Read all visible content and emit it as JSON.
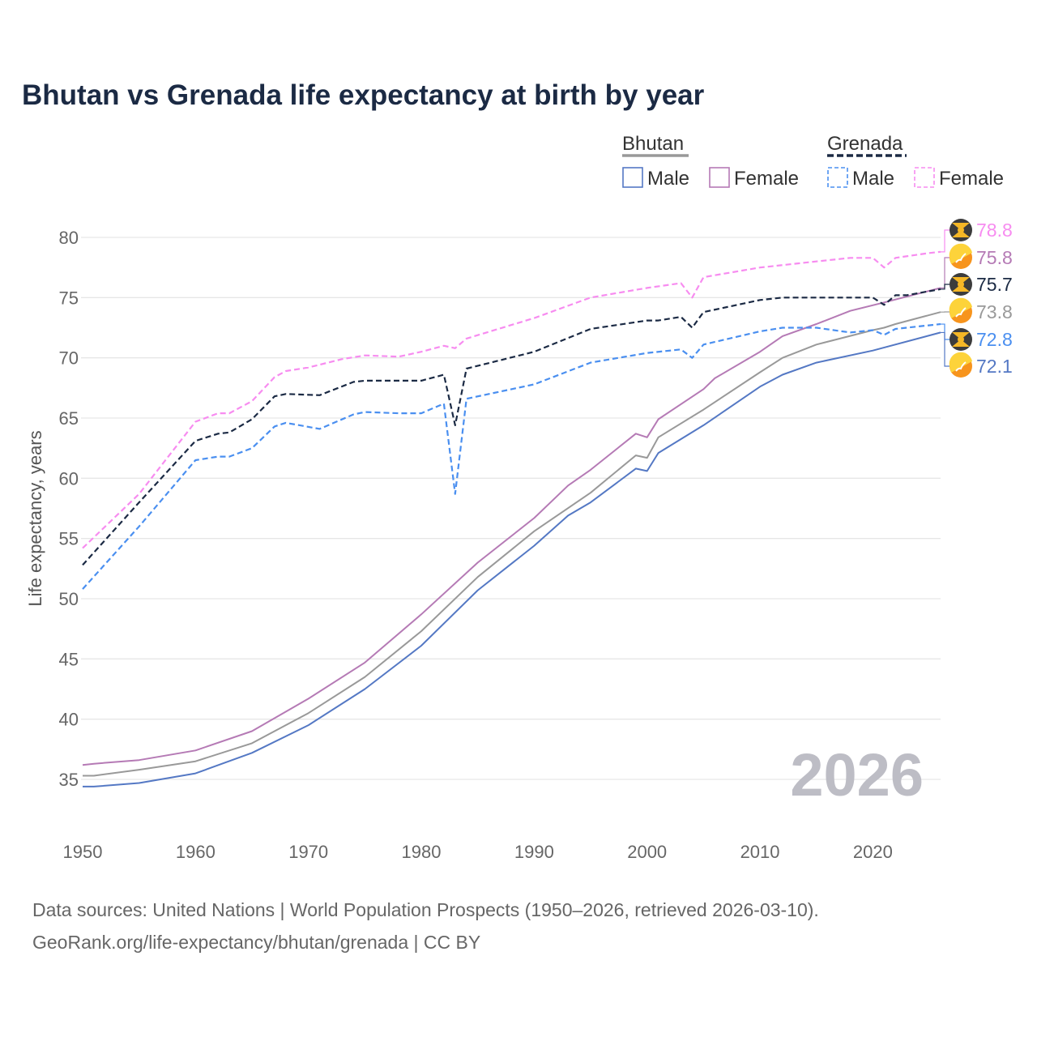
{
  "chart_data": {
    "type": "line",
    "title": "Bhutan vs Grenada life expectancy at birth by year",
    "xlabel": "",
    "ylabel": "Life expectancy, years",
    "xlim": [
      1950,
      2026
    ],
    "ylim": [
      32,
      82
    ],
    "x_ticks": [
      "1950",
      "1960",
      "1970",
      "1980",
      "1990",
      "2000",
      "2010",
      "2020"
    ],
    "y_ticks": [
      "35",
      "40",
      "45",
      "50",
      "55",
      "60",
      "65",
      "70",
      "75",
      "80"
    ],
    "grid": true,
    "year_watermark": "2026",
    "legend": {
      "placement": "top-right",
      "groups": [
        {
          "name": "Bhutan",
          "items": [
            "Male",
            "Female"
          ]
        },
        {
          "name": "Grenada",
          "items": [
            "Male",
            "Female"
          ]
        }
      ]
    },
    "series": [
      {
        "name": "Grenada Female",
        "color": "#f78cf0",
        "dash": true,
        "end_label": "78.8",
        "country": "grenada",
        "points": [
          [
            1950,
            54.2
          ],
          [
            1955,
            58.7
          ],
          [
            1960,
            64.7
          ],
          [
            1962,
            65.4
          ],
          [
            1963,
            65.4
          ],
          [
            1965,
            66.4
          ],
          [
            1967,
            68.4
          ],
          [
            1968,
            68.9
          ],
          [
            1970,
            69.2
          ],
          [
            1973,
            69.9
          ],
          [
            1975,
            70.2
          ],
          [
            1978,
            70.1
          ],
          [
            1980,
            70.5
          ],
          [
            1982,
            71.0
          ],
          [
            1983,
            70.8
          ],
          [
            1984,
            71.6
          ],
          [
            1990,
            73.3
          ],
          [
            1995,
            75.0
          ],
          [
            2000,
            75.8
          ],
          [
            2003,
            76.2
          ],
          [
            2004,
            75.0
          ],
          [
            2005,
            76.7
          ],
          [
            2010,
            77.5
          ],
          [
            2015,
            78.0
          ],
          [
            2018,
            78.3
          ],
          [
            2020,
            78.3
          ],
          [
            2021,
            77.5
          ],
          [
            2022,
            78.3
          ],
          [
            2025,
            78.7
          ],
          [
            2026,
            78.8
          ]
        ]
      },
      {
        "name": "Bhutan Female",
        "color": "#b57ab5",
        "dash": false,
        "end_label": "75.8",
        "country": "bhutan",
        "points": [
          [
            1950,
            36.2
          ],
          [
            1951,
            36.3
          ],
          [
            1955,
            36.6
          ],
          [
            1960,
            37.4
          ],
          [
            1965,
            39.0
          ],
          [
            1970,
            41.7
          ],
          [
            1975,
            44.7
          ],
          [
            1980,
            48.7
          ],
          [
            1985,
            53.0
          ],
          [
            1990,
            56.7
          ],
          [
            1993,
            59.4
          ],
          [
            1995,
            60.7
          ],
          [
            1999,
            63.7
          ],
          [
            2000,
            63.4
          ],
          [
            2001,
            64.9
          ],
          [
            2005,
            67.4
          ],
          [
            2006,
            68.3
          ],
          [
            2010,
            70.5
          ],
          [
            2012,
            71.8
          ],
          [
            2015,
            72.8
          ],
          [
            2018,
            73.9
          ],
          [
            2021,
            74.6
          ],
          [
            2026,
            75.8
          ]
        ]
      },
      {
        "name": "Grenada",
        "color": "#1b2a44",
        "dash": true,
        "end_label": "75.7",
        "country": "grenada",
        "points": [
          [
            1950,
            52.8
          ],
          [
            1955,
            58.0
          ],
          [
            1960,
            63.1
          ],
          [
            1962,
            63.7
          ],
          [
            1963,
            63.8
          ],
          [
            1965,
            64.9
          ],
          [
            1967,
            66.8
          ],
          [
            1968,
            67.0
          ],
          [
            1971,
            66.9
          ],
          [
            1974,
            68.0
          ],
          [
            1975,
            68.1
          ],
          [
            1980,
            68.1
          ],
          [
            1982,
            68.6
          ],
          [
            1983,
            64.4
          ],
          [
            1984,
            69.1
          ],
          [
            1990,
            70.5
          ],
          [
            1995,
            72.4
          ],
          [
            2000,
            73.1
          ],
          [
            2001,
            73.1
          ],
          [
            2003,
            73.4
          ],
          [
            2004,
            72.5
          ],
          [
            2005,
            73.8
          ],
          [
            2010,
            74.8
          ],
          [
            2012,
            75.0
          ],
          [
            2020,
            75.0
          ],
          [
            2021,
            74.4
          ],
          [
            2022,
            75.2
          ],
          [
            2023,
            75.2
          ],
          [
            2026,
            75.7
          ]
        ]
      },
      {
        "name": "Bhutan",
        "color": "#999999",
        "dash": false,
        "end_label": "73.8",
        "country": "bhutan",
        "points": [
          [
            1950,
            35.3
          ],
          [
            1951,
            35.3
          ],
          [
            1955,
            35.8
          ],
          [
            1960,
            36.5
          ],
          [
            1965,
            38.0
          ],
          [
            1970,
            40.5
          ],
          [
            1975,
            43.5
          ],
          [
            1980,
            47.3
          ],
          [
            1985,
            51.8
          ],
          [
            1990,
            55.6
          ],
          [
            1995,
            58.8
          ],
          [
            1999,
            61.9
          ],
          [
            2000,
            61.7
          ],
          [
            2001,
            63.4
          ],
          [
            2005,
            65.7
          ],
          [
            2010,
            68.8
          ],
          [
            2012,
            70.0
          ],
          [
            2015,
            71.1
          ],
          [
            2020,
            72.3
          ],
          [
            2021,
            72.5
          ],
          [
            2022,
            72.8
          ],
          [
            2026,
            73.8
          ]
        ]
      },
      {
        "name": "Grenada Male",
        "color": "#4a8ff0",
        "dash": true,
        "end_label": "72.8",
        "country": "grenada",
        "points": [
          [
            1950,
            50.8
          ],
          [
            1955,
            56.0
          ],
          [
            1960,
            61.5
          ],
          [
            1962,
            61.8
          ],
          [
            1963,
            61.8
          ],
          [
            1965,
            62.5
          ],
          [
            1967,
            64.3
          ],
          [
            1968,
            64.6
          ],
          [
            1971,
            64.1
          ],
          [
            1974,
            65.3
          ],
          [
            1975,
            65.5
          ],
          [
            1978,
            65.4
          ],
          [
            1980,
            65.4
          ],
          [
            1982,
            66.2
          ],
          [
            1983,
            58.7
          ],
          [
            1984,
            66.6
          ],
          [
            1990,
            67.8
          ],
          [
            1995,
            69.6
          ],
          [
            2000,
            70.4
          ],
          [
            2003,
            70.7
          ],
          [
            2004,
            70.0
          ],
          [
            2005,
            71.1
          ],
          [
            2010,
            72.2
          ],
          [
            2012,
            72.5
          ],
          [
            2015,
            72.5
          ],
          [
            2018,
            72.1
          ],
          [
            2020,
            72.3
          ],
          [
            2021,
            71.9
          ],
          [
            2022,
            72.4
          ],
          [
            2026,
            72.8
          ]
        ]
      },
      {
        "name": "Bhutan Male",
        "color": "#5478c4",
        "dash": false,
        "end_label": "72.1",
        "country": "bhutan",
        "points": [
          [
            1950,
            34.4
          ],
          [
            1951,
            34.4
          ],
          [
            1955,
            34.7
          ],
          [
            1960,
            35.5
          ],
          [
            1965,
            37.2
          ],
          [
            1970,
            39.5
          ],
          [
            1975,
            42.5
          ],
          [
            1980,
            46.1
          ],
          [
            1985,
            50.7
          ],
          [
            1990,
            54.4
          ],
          [
            1993,
            56.9
          ],
          [
            1995,
            58.0
          ],
          [
            1999,
            60.8
          ],
          [
            2000,
            60.6
          ],
          [
            2001,
            62.1
          ],
          [
            2005,
            64.4
          ],
          [
            2010,
            67.6
          ],
          [
            2012,
            68.6
          ],
          [
            2015,
            69.6
          ],
          [
            2020,
            70.6
          ],
          [
            2026,
            72.1
          ]
        ]
      }
    ]
  },
  "footer": {
    "line1": "Data sources: United Nations | World Population Prospects (1950–2026, retrieved 2026-03-10).",
    "line2": "GeoRank.org/life-expectancy/bhutan/grenada | CC BY"
  }
}
